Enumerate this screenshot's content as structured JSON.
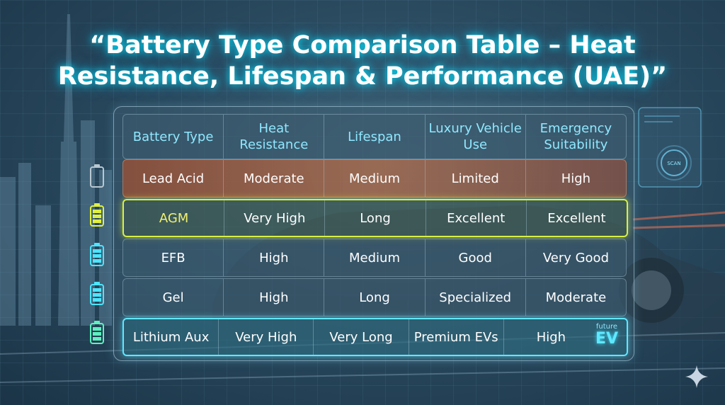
{
  "title_line1": "“Battery Type Comparison Table – Heat",
  "title_line2": "Resistance, Lifespan & Performance (UAE)”",
  "headers": [
    "Battery Type",
    "Heat Resistance",
    "Lifespan",
    "Luxury Vehicle Use",
    "Emergency Suitability"
  ],
  "rows": [
    [
      "Lead Acid",
      "Moderate",
      "Medium",
      "Limited",
      "High"
    ],
    [
      "AGM",
      "Very High",
      "Long",
      "Excellent",
      "Excellent"
    ],
    [
      "EFB",
      "High",
      "Medium",
      "Good",
      "Very Good"
    ],
    [
      "Gel",
      "High",
      "Long",
      "Specialized",
      "Moderate"
    ],
    [
      "Lithium Aux",
      "Very High",
      "Very Long",
      "Premium EVs",
      "High"
    ]
  ],
  "badge_small": "future",
  "badge_large": "EV",
  "hud_label": "SCAN",
  "icons": [
    "battery-empty-icon",
    "battery-full-yellow-icon",
    "battery-full-cyan-icon",
    "battery-full-cyan-icon",
    "battery-full-green-icon"
  ],
  "colors": {
    "title_glow": "#00e6ff",
    "header_text": "#8fe8ff",
    "agm_border": "#d8f044",
    "lithium_border": "#5fe8ff"
  }
}
